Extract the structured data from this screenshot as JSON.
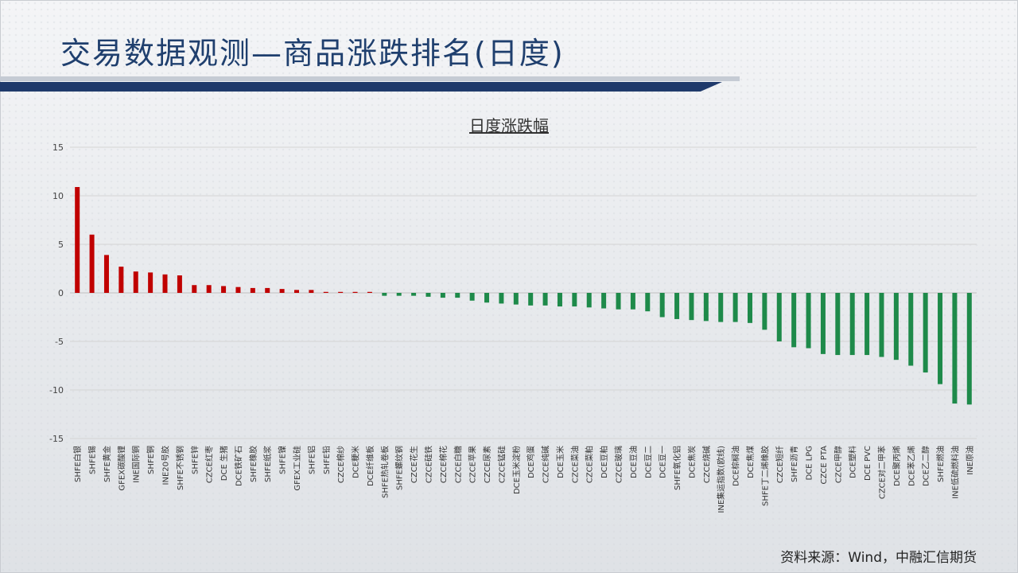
{
  "header": {
    "title": "交易数据观测—商品涨跌排名(日度)"
  },
  "source": "资料来源：Wind，中融汇信期货",
  "colors": {
    "up": "#c00000",
    "down": "#1e8a4a",
    "grid": "#d4d4d4",
    "title_bar": "#1f3a6b"
  },
  "chart_data": {
    "type": "bar",
    "title": "日度涨跌幅",
    "xlabel": "",
    "ylabel": "",
    "ylim": [
      -15,
      15
    ],
    "yticks": [
      15,
      10,
      5,
      0,
      -5,
      -10,
      -15
    ],
    "grid": true,
    "categories": [
      "SHFE白银",
      "SHFE锡",
      "SHFE黄金",
      "GFEX碳酸锂",
      "INE国际铜",
      "SHFE铜",
      "INE20号胶",
      "SHFE不锈钢",
      "SHFE锌",
      "CZCE红枣",
      "DCE 生猪",
      "DCE铁矿石",
      "SHFE橡胶",
      "SHFE纸浆",
      "SHFE镍",
      "GFEX工业硅",
      "SHFE铝",
      "SHFE铅",
      "CZCE棉纱",
      "DCE粳米",
      "DCE纤维板",
      "SHFE热轧卷板",
      "SHFE螺纹钢",
      "CZCE花生",
      "CZCE硅铁",
      "CZCE棉花",
      "CZCE白糖",
      "CZCE苹果",
      "CZCE尿素",
      "CZCE锰硅",
      "DCE玉米淀粉",
      "DCE鸡蛋",
      "CZCE纯碱",
      "DCE玉米",
      "CZCE菜油",
      "CZCE菜粕",
      "DCE豆粕",
      "CZCE玻璃",
      "DCE豆油",
      "DCE豆二",
      "DCE豆一",
      "SHFE氧化铝",
      "DCE焦炭",
      "CZCE烧碱",
      "INE集运指数(欧线)",
      "DCE棕榈油",
      "DCE焦煤",
      "SHFE丁二烯橡胶",
      "CZCE短纤",
      "SHFE沥青",
      "DCE LPG",
      "CZCE PTA",
      "CZCE甲醇",
      "DCE塑料",
      "DCE PVC",
      "CZCE对二甲苯",
      "DCE聚丙烯",
      "DCE苯乙烯",
      "DCE乙二醇",
      "SHFE燃油",
      "INE低硫燃料油",
      "INE原油"
    ],
    "values": [
      10.9,
      6.0,
      3.9,
      2.7,
      2.2,
      2.1,
      1.9,
      1.8,
      0.8,
      0.8,
      0.7,
      0.6,
      0.5,
      0.5,
      0.4,
      0.3,
      0.3,
      0.1,
      0.1,
      0.1,
      0.1,
      -0.3,
      -0.3,
      -0.3,
      -0.4,
      -0.5,
      -0.5,
      -0.8,
      -1.0,
      -1.1,
      -1.2,
      -1.3,
      -1.3,
      -1.4,
      -1.4,
      -1.5,
      -1.6,
      -1.7,
      -1.7,
      -1.9,
      -2.5,
      -2.7,
      -2.8,
      -2.9,
      -3.0,
      -3.0,
      -3.1,
      -3.8,
      -5.0,
      -5.6,
      -5.7,
      -6.3,
      -6.4,
      -6.4,
      -6.4,
      -6.6,
      -6.9,
      -7.5,
      -8.2,
      -9.4,
      -11.4,
      -11.5
    ]
  }
}
